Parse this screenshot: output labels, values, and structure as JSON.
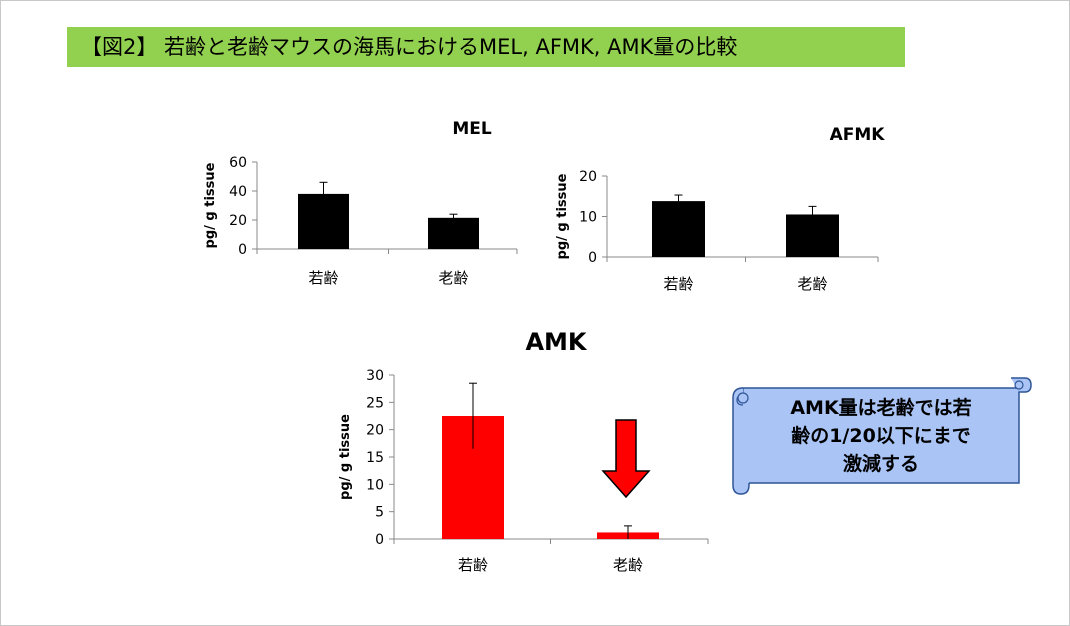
{
  "banner": {
    "title": "【図2】 若齢と老齢マウスの海馬におけるMEL, AFMK, AMK量の比較",
    "color": "#92d050"
  },
  "callout": {
    "lines": [
      "AMK量は老齢では若",
      "齢の1/20以下にまで",
      "激減する"
    ],
    "fill": "#a9c4f5",
    "border": "#2f5597"
  },
  "arrow": {
    "icon": "down-arrow-icon",
    "color": "#ff0000"
  },
  "chart_data": [
    {
      "id": "mel",
      "type": "bar",
      "title": "MEL",
      "ylabel": "pg/ g tissue",
      "categories": [
        "若齢",
        "老齢"
      ],
      "values": [
        38,
        21.5
      ],
      "errors": [
        8,
        2.5
      ],
      "ylim": [
        0,
        60
      ],
      "yticks": [
        0,
        20,
        40,
        60
      ],
      "bar_color": "#000000",
      "grid": false
    },
    {
      "id": "afmk",
      "type": "bar",
      "title": "AFMK",
      "ylabel": "pg/ g tissue",
      "categories": [
        "若齢",
        "老齢"
      ],
      "values": [
        13.8,
        10.5
      ],
      "errors": [
        1.5,
        2
      ],
      "ylim": [
        0,
        20
      ],
      "yticks": [
        0,
        10,
        20
      ],
      "bar_color": "#000000",
      "grid": false
    },
    {
      "id": "amk",
      "type": "bar",
      "title": "AMK",
      "ylabel": "pg/ g tissue",
      "categories": [
        "若齢",
        "老齢"
      ],
      "values": [
        22.5,
        1.2
      ],
      "errors": [
        6,
        1.2
      ],
      "ylim": [
        0,
        30
      ],
      "yticks": [
        0,
        5,
        10,
        15,
        20,
        25,
        30
      ],
      "bar_color": "#ff0000",
      "grid": false
    }
  ]
}
